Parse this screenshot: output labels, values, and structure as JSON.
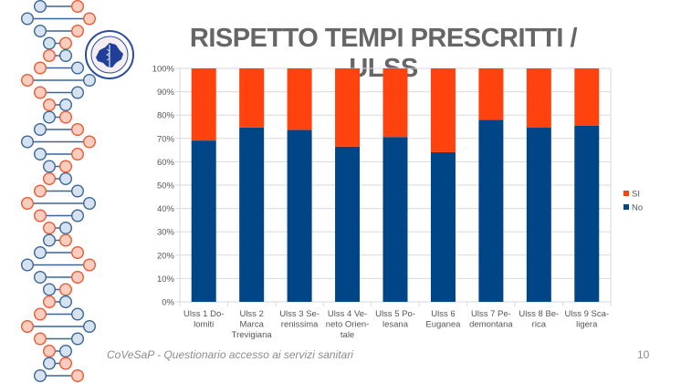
{
  "slide": {
    "title": "RISPETTO TEMPI PRESCRITTI / ULSS",
    "footer": "CoVeSaP - Questionario accesso ai servizi sanitari",
    "page_number": "10",
    "logo": "covesap-logo-icon",
    "decoration": "dna-helix-icon"
  },
  "colors": {
    "si": "#FF420E",
    "no": "#004586",
    "grid": "#d9d9d9",
    "axis_text": "#555555",
    "dna_blue_fill": "#d6e2f0",
    "dna_blue_stroke": "#3b6596",
    "dna_orange_fill": "#fbcdbf",
    "dna_orange_stroke": "#ea5a34"
  },
  "chart_data": {
    "type": "bar",
    "stacked": true,
    "percent_stacked": true,
    "title": "RISPETTO TEMPI PRESCRITTI / ULSS",
    "xlabel": "",
    "ylabel": "",
    "ylim": [
      0,
      100
    ],
    "yticks": [
      "0%",
      "10%",
      "20%",
      "30%",
      "40%",
      "50%",
      "60%",
      "70%",
      "80%",
      "90%",
      "100%"
    ],
    "grid": true,
    "legend_position": "right",
    "categories": [
      [
        "Ulss 1 Do-",
        "lomiti"
      ],
      [
        "Ulss 2",
        "Marca",
        "Trevigiana"
      ],
      [
        "Ulss 3 Se-",
        "renissima"
      ],
      [
        "Ulss 4 Ve-",
        "neto Orien-",
        "tale"
      ],
      [
        "Ulss 5 Po-",
        "lesana"
      ],
      [
        "Ulss 6",
        "Euganea"
      ],
      [
        "Ulss 7 Pe-",
        "demontana"
      ],
      [
        "Ulss 8 Be-",
        "rica"
      ],
      [
        "Ulss 9 Sca-",
        "ligera"
      ]
    ],
    "series": [
      {
        "name": "No",
        "values": [
          69.1,
          74.7,
          73.7,
          66.5,
          70.6,
          64.1,
          78.0,
          74.6,
          75.4
        ]
      },
      {
        "name": "SI",
        "values": [
          30.9,
          25.3,
          26.3,
          33.5,
          29.4,
          35.9,
          22.0,
          25.4,
          24.6
        ]
      }
    ],
    "legend": [
      "SI",
      "No"
    ]
  }
}
